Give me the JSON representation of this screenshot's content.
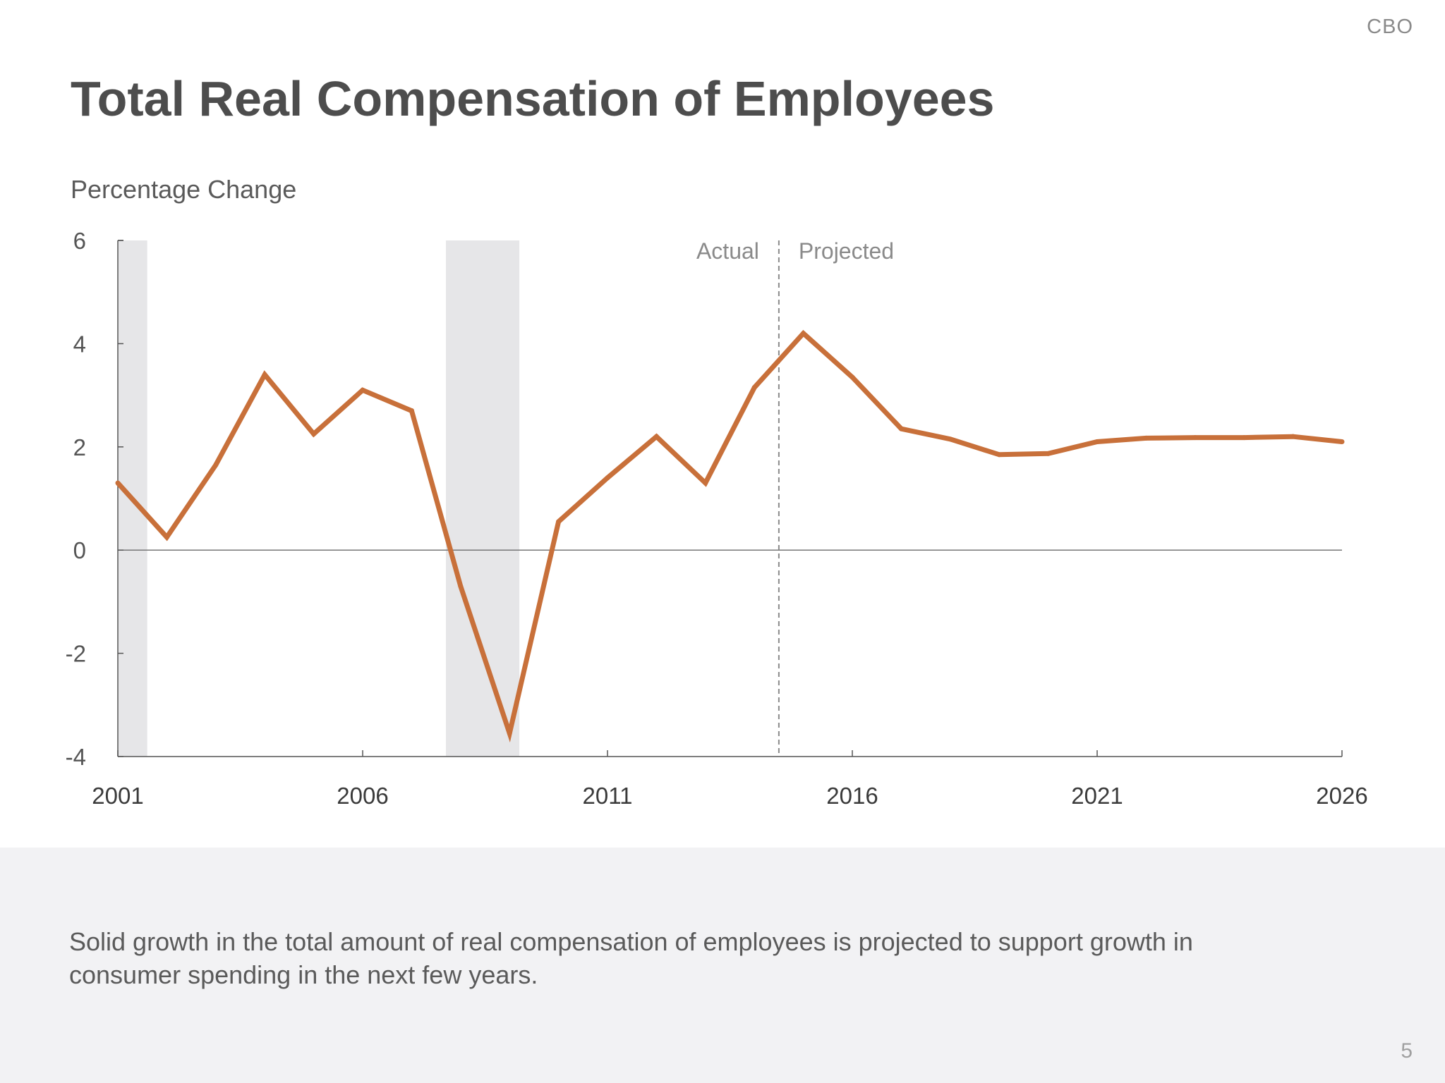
{
  "header": {
    "brand": "CBO",
    "title": "Total Real Compensation of Employees"
  },
  "chart_data": {
    "type": "line",
    "ylabel": "Percentage Change",
    "xlim": [
      2001,
      2026
    ],
    "ylim": [
      -4,
      6
    ],
    "y_ticks": [
      -4,
      -2,
      0,
      2,
      4,
      6
    ],
    "x_ticks": [
      2001,
      2006,
      2011,
      2016,
      2021,
      2026
    ],
    "grid": false,
    "zero_line": true,
    "recessions": [
      [
        2001.0,
        2001.6
      ],
      [
        2007.7,
        2009.2
      ]
    ],
    "divider": {
      "x": 2014.5,
      "left_label": "Actual",
      "right_label": "Projected"
    },
    "series": [
      {
        "color": "#c8703a",
        "x": [
          2001,
          2002,
          2003,
          2004,
          2005,
          2006,
          2007,
          2008,
          2009,
          2010,
          2011,
          2012,
          2013,
          2014,
          2015,
          2016,
          2017,
          2018,
          2019,
          2020,
          2021,
          2022,
          2023,
          2024,
          2025,
          2026
        ],
        "y": [
          1.3,
          0.25,
          1.65,
          3.4,
          2.25,
          3.1,
          2.7,
          -0.7,
          -3.55,
          0.55,
          1.4,
          2.2,
          1.3,
          3.15,
          4.2,
          3.35,
          2.35,
          2.15,
          1.85,
          1.87,
          2.1,
          2.17,
          2.18,
          2.18,
          2.2,
          2.1
        ]
      }
    ]
  },
  "footer": {
    "caption": "Solid growth in the total amount of real compensation of employees is projected to support growth in consumer spending in the next few years.",
    "page": "5"
  }
}
